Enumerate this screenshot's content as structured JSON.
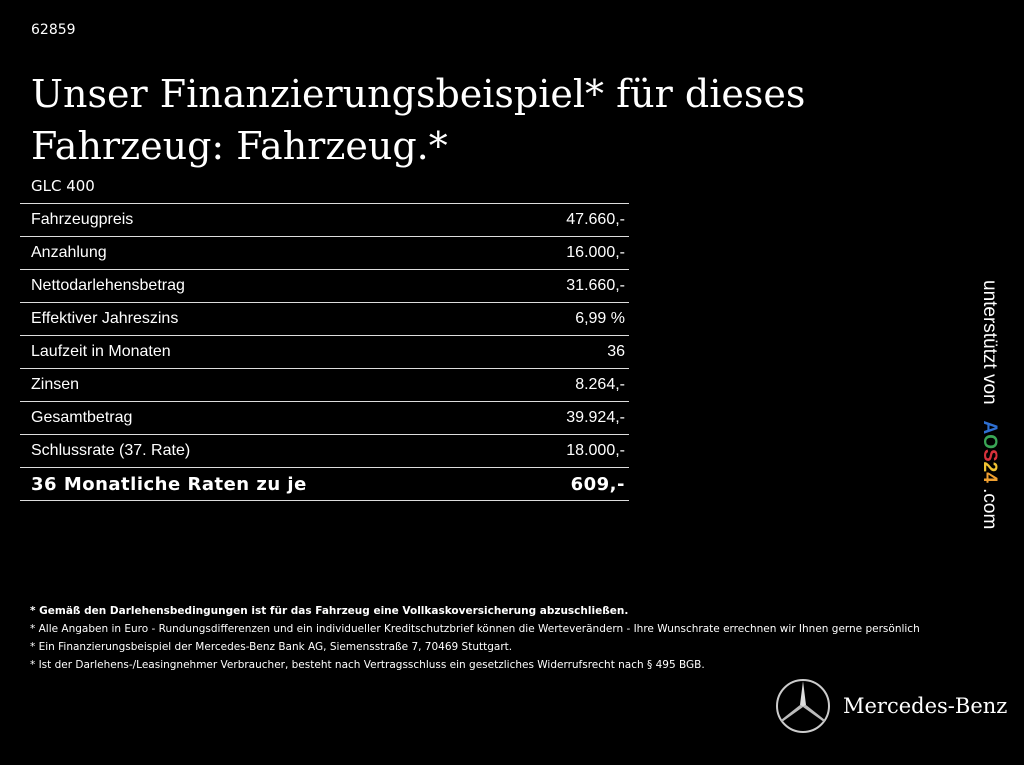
{
  "id": "62859",
  "title": "Unser Finanzierungsbeispiel* für dieses Fahrzeug: Fahrzeug.*",
  "model": "GLC 400",
  "rows": [
    {
      "label": "Fahrzeugpreis",
      "value": "47.660,-"
    },
    {
      "label": "Anzahlung",
      "value": "16.000,-"
    },
    {
      "label": "Nettodarlehensbetrag",
      "value": "31.660,-"
    },
    {
      "label": "Effektiver Jahreszins",
      "value": "6,99 %"
    },
    {
      "label": "Laufzeit in Monaten",
      "value": "36"
    },
    {
      "label": "Zinsen",
      "value": "8.264,-"
    },
    {
      "label": "Gesamtbetrag",
      "value": "39.924,-"
    },
    {
      "label": "Schlussrate (37. Rate)",
      "value": "18.000,-"
    }
  ],
  "total": {
    "label": "36 Monatliche Raten zu je",
    "value": "609,-"
  },
  "side": {
    "text": "unterstützt von",
    "logo": [
      "A",
      "O",
      "S",
      "2",
      "4"
    ],
    "logo_colors": [
      "#2e6fd1",
      "#3aa655",
      "#d8323c",
      "#f1c232",
      "#f0a030"
    ],
    "suffix": ".com"
  },
  "notes": [
    "* Gemäß den Darlehensbedingungen ist für das Fahrzeug eine Vollkaskoversicherung abzuschließen.",
    "* Alle Angaben in Euro - Rundungsdifferenzen und ein individueller Kreditschutzbrief können die Werteverändern - Ihre Wunschrate errechnen wir Ihnen gerne persönlich",
    "* Ein Finanzierungsbeispiel der Mercedes-Benz Bank AG, Siemensstraße 7, 70469 Stuttgart.",
    "* Ist der Darlehens-/Leasingnehmer Verbraucher, besteht nach Vertragsschluss ein gesetzliches Widerrufsrecht nach § 495 BGB."
  ],
  "brand": "Mercedes-Benz"
}
